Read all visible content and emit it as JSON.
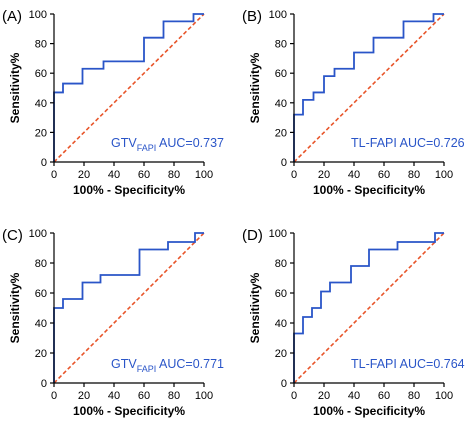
{
  "colors": {
    "roc": "#2a55c8",
    "reference": "#e8552a",
    "axis": "#000000"
  },
  "chart_data": [
    {
      "panel": "(A)",
      "type": "line",
      "xlabel": "100% - Specificity%",
      "ylabel": "Sensitivity%",
      "xlim": [
        0,
        100
      ],
      "ylim": [
        0,
        100
      ],
      "xticks": [
        "0",
        "20",
        "40",
        "60",
        "80",
        "100"
      ],
      "yticks": [
        "0",
        "20",
        "40",
        "60",
        "80",
        "100"
      ],
      "annotation": {
        "main": "GTV",
        "sub": "FAPI",
        "rest": " AUC=0.737"
      },
      "roc": [
        [
          0,
          0
        ],
        [
          0,
          47
        ],
        [
          6,
          47
        ],
        [
          6,
          53
        ],
        [
          19,
          53
        ],
        [
          19,
          63
        ],
        [
          33,
          63
        ],
        [
          33,
          68
        ],
        [
          60,
          68
        ],
        [
          60,
          84
        ],
        [
          73,
          84
        ],
        [
          73,
          95
        ],
        [
          93,
          95
        ],
        [
          93,
          100
        ],
        [
          100,
          100
        ]
      ],
      "reference": [
        [
          0,
          0
        ],
        [
          100,
          100
        ]
      ]
    },
    {
      "panel": "(B)",
      "type": "line",
      "xlabel": "100% - Specificity%",
      "ylabel": "Sensitivity%",
      "xlim": [
        0,
        100
      ],
      "ylim": [
        0,
        100
      ],
      "xticks": [
        "0",
        "20",
        "40",
        "60",
        "80",
        "100"
      ],
      "yticks": [
        "0",
        "20",
        "40",
        "60",
        "80",
        "100"
      ],
      "annotation": {
        "main": "TL-FAPI  AUC=0.726",
        "sub": "",
        "rest": ""
      },
      "roc": [
        [
          0,
          0
        ],
        [
          0,
          32
        ],
        [
          6,
          32
        ],
        [
          6,
          42
        ],
        [
          13,
          42
        ],
        [
          13,
          47
        ],
        [
          20,
          47
        ],
        [
          20,
          58
        ],
        [
          27,
          58
        ],
        [
          27,
          63
        ],
        [
          40,
          63
        ],
        [
          40,
          74
        ],
        [
          53,
          74
        ],
        [
          53,
          84
        ],
        [
          73,
          84
        ],
        [
          73,
          95
        ],
        [
          93,
          95
        ],
        [
          93,
          100
        ],
        [
          100,
          100
        ]
      ],
      "reference": [
        [
          0,
          0
        ],
        [
          100,
          100
        ]
      ]
    },
    {
      "panel": "(C)",
      "type": "line",
      "xlabel": "100% - Specificity%",
      "ylabel": "Sensitivity%",
      "xlim": [
        0,
        100
      ],
      "ylim": [
        0,
        100
      ],
      "xticks": [
        "0",
        "20",
        "40",
        "60",
        "80",
        "100"
      ],
      "yticks": [
        "0",
        "20",
        "40",
        "60",
        "80",
        "100"
      ],
      "annotation": {
        "main": "GTV",
        "sub": "FAPI",
        "rest": "  AUC=0.771"
      },
      "roc": [
        [
          0,
          0
        ],
        [
          0,
          50
        ],
        [
          6,
          50
        ],
        [
          6,
          56
        ],
        [
          19,
          56
        ],
        [
          19,
          67
        ],
        [
          31,
          67
        ],
        [
          31,
          72
        ],
        [
          57,
          72
        ],
        [
          57,
          89
        ],
        [
          76,
          89
        ],
        [
          76,
          94
        ],
        [
          94,
          94
        ],
        [
          94,
          100
        ],
        [
          100,
          100
        ]
      ],
      "reference": [
        [
          0,
          0
        ],
        [
          100,
          100
        ]
      ]
    },
    {
      "panel": "(D)",
      "type": "line",
      "xlabel": "100% - Specificity%",
      "ylabel": "Sensitivity%",
      "xlim": [
        0,
        100
      ],
      "ylim": [
        0,
        100
      ],
      "xticks": [
        "0",
        "20",
        "40",
        "60",
        "80",
        "100"
      ],
      "yticks": [
        "0",
        "20",
        "40",
        "60",
        "80",
        "100"
      ],
      "annotation": {
        "main": "TL-FAPI  AUC=0.764",
        "sub": "",
        "rest": ""
      },
      "roc": [
        [
          0,
          0
        ],
        [
          0,
          33
        ],
        [
          6,
          33
        ],
        [
          6,
          44
        ],
        [
          12,
          44
        ],
        [
          12,
          50
        ],
        [
          18,
          50
        ],
        [
          18,
          61
        ],
        [
          24,
          61
        ],
        [
          24,
          67
        ],
        [
          38,
          67
        ],
        [
          38,
          78
        ],
        [
          50,
          78
        ],
        [
          50,
          89
        ],
        [
          69,
          89
        ],
        [
          69,
          94
        ],
        [
          94,
          94
        ],
        [
          94,
          100
        ],
        [
          100,
          100
        ]
      ],
      "reference": [
        [
          0,
          0
        ],
        [
          100,
          100
        ]
      ]
    }
  ]
}
